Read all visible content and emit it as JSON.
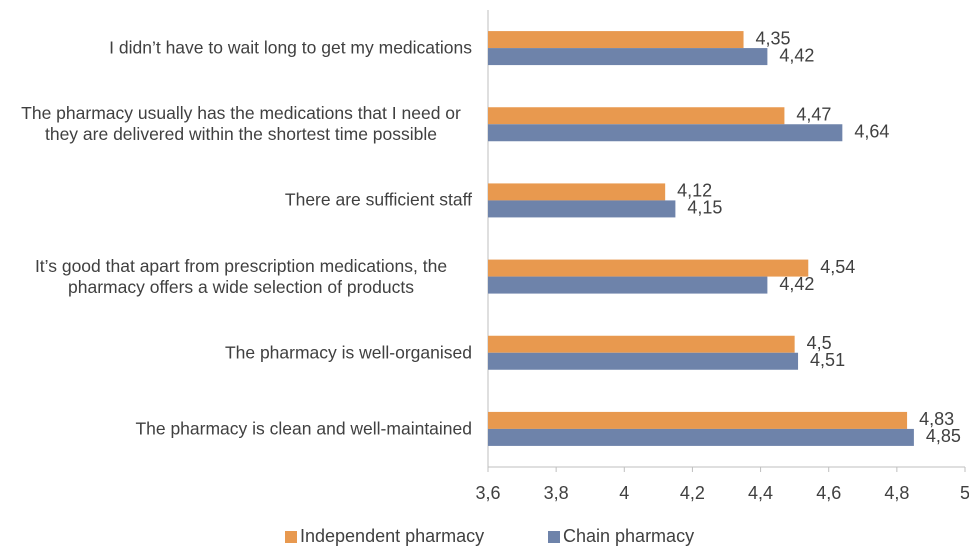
{
  "chart_data": {
    "type": "bar",
    "orientation": "horizontal",
    "categories": [
      "I didn’t have to wait long to get my medications",
      "The pharmacy usually has the medications that I need or they are delivered within the shortest time possible",
      "There are sufficient staff",
      "It’s good that apart from prescription medications, the pharmacy offers a wide selection of products",
      "The pharmacy is well-organised",
      "The pharmacy is clean and well-maintained"
    ],
    "series": [
      {
        "name": "Independent pharmacy",
        "color": "#e8994f",
        "values": [
          4.35,
          4.47,
          4.12,
          4.54,
          4.5,
          4.83
        ],
        "value_labels": [
          "4,35",
          "4,47",
          "4,12",
          "4,54",
          "4,5",
          "4,83"
        ]
      },
      {
        "name": "Chain pharmacy",
        "color": "#6e83aa",
        "values": [
          4.42,
          4.64,
          4.15,
          4.42,
          4.51,
          4.85
        ],
        "value_labels": [
          "4,42",
          "4,64",
          "4,15",
          "4,42",
          "4,51",
          "4,85"
        ]
      }
    ],
    "xlim": [
      3.6,
      5
    ],
    "xticks": [
      {
        "value": 3.6,
        "label": "3,6"
      },
      {
        "value": 3.8,
        "label": "3,8"
      },
      4,
      {
        "value": 4.2,
        "label": "4,2"
      },
      {
        "value": 4.4,
        "label": "4,4"
      },
      {
        "value": 4.6,
        "label": "4,6"
      },
      {
        "value": 4.8,
        "label": "4,8"
      },
      5
    ],
    "grid": false,
    "legend": "bottom"
  }
}
